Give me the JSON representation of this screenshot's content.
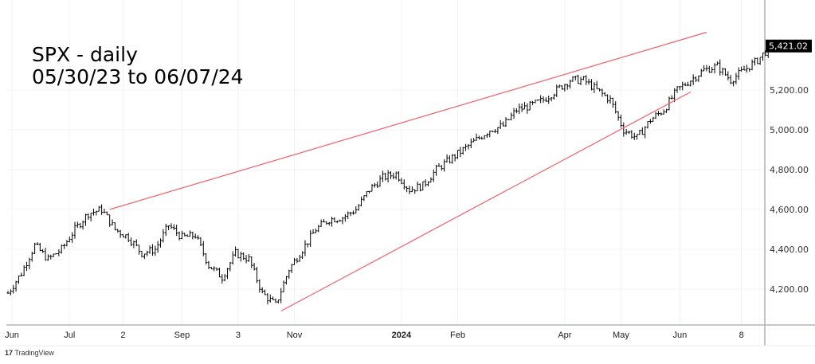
{
  "chart_data": {
    "type": "ohlc",
    "title": "SPX - daily",
    "subtitle": "05/30/23 to 06/07/24",
    "ylim": [
      4020,
      5580
    ],
    "y_ticks": [
      4200,
      4400,
      4600,
      4800,
      5000,
      5200
    ],
    "y_tick_labels": [
      "4,200.00",
      "4,400.00",
      "4,600.00",
      "4,800.00",
      "5,000.00",
      "5,200.00"
    ],
    "last_price": 5421.02,
    "last_price_label": "5,421.02",
    "x_unit": "trading-day index from 05/30/23",
    "x_ticks": [
      {
        "i": 1.5,
        "label": "Jun"
      },
      {
        "i": 23,
        "label": "Jul"
      },
      {
        "i": 43,
        "label": "2"
      },
      {
        "i": 65,
        "label": "Sep"
      },
      {
        "i": 86,
        "label": "3"
      },
      {
        "i": 107,
        "label": "Nov"
      },
      {
        "i": 147,
        "label": "2024",
        "bold": true
      },
      {
        "i": 168,
        "label": "Feb"
      },
      {
        "i": 208,
        "label": "Apr"
      },
      {
        "i": 229,
        "label": "May"
      },
      {
        "i": 251,
        "label": "Jun"
      },
      {
        "i": 274,
        "label": "8"
      }
    ],
    "weekly_closes": [
      4180,
      4280,
      4420,
      4350,
      4400,
      4500,
      4580,
      4600,
      4500,
      4460,
      4380,
      4400,
      4520,
      4460,
      4470,
      4320,
      4260,
      4380,
      4350,
      4180,
      4120,
      4300,
      4400,
      4500,
      4550,
      4560,
      4600,
      4700,
      4760,
      4780,
      4700,
      4720,
      4800,
      4850,
      4900,
      4950,
      5000,
      5020,
      5100,
      5120,
      5150,
      5200,
      5250,
      5250,
      5200,
      5150,
      5000,
      4960,
      5050,
      5100,
      5200,
      5250,
      5300,
      5320,
      5250,
      5300,
      5350,
      5421
    ],
    "trendlines": [
      {
        "name": "upper",
        "color": "#f0606a",
        "from": [
          38,
          4600
        ],
        "to": [
          261,
          5490
        ]
      },
      {
        "name": "lower",
        "color": "#f0606a",
        "from": [
          102,
          4090
        ],
        "to": [
          255,
          5190
        ]
      }
    ],
    "grid": true
  },
  "footer": {
    "brand": "TradingView"
  }
}
